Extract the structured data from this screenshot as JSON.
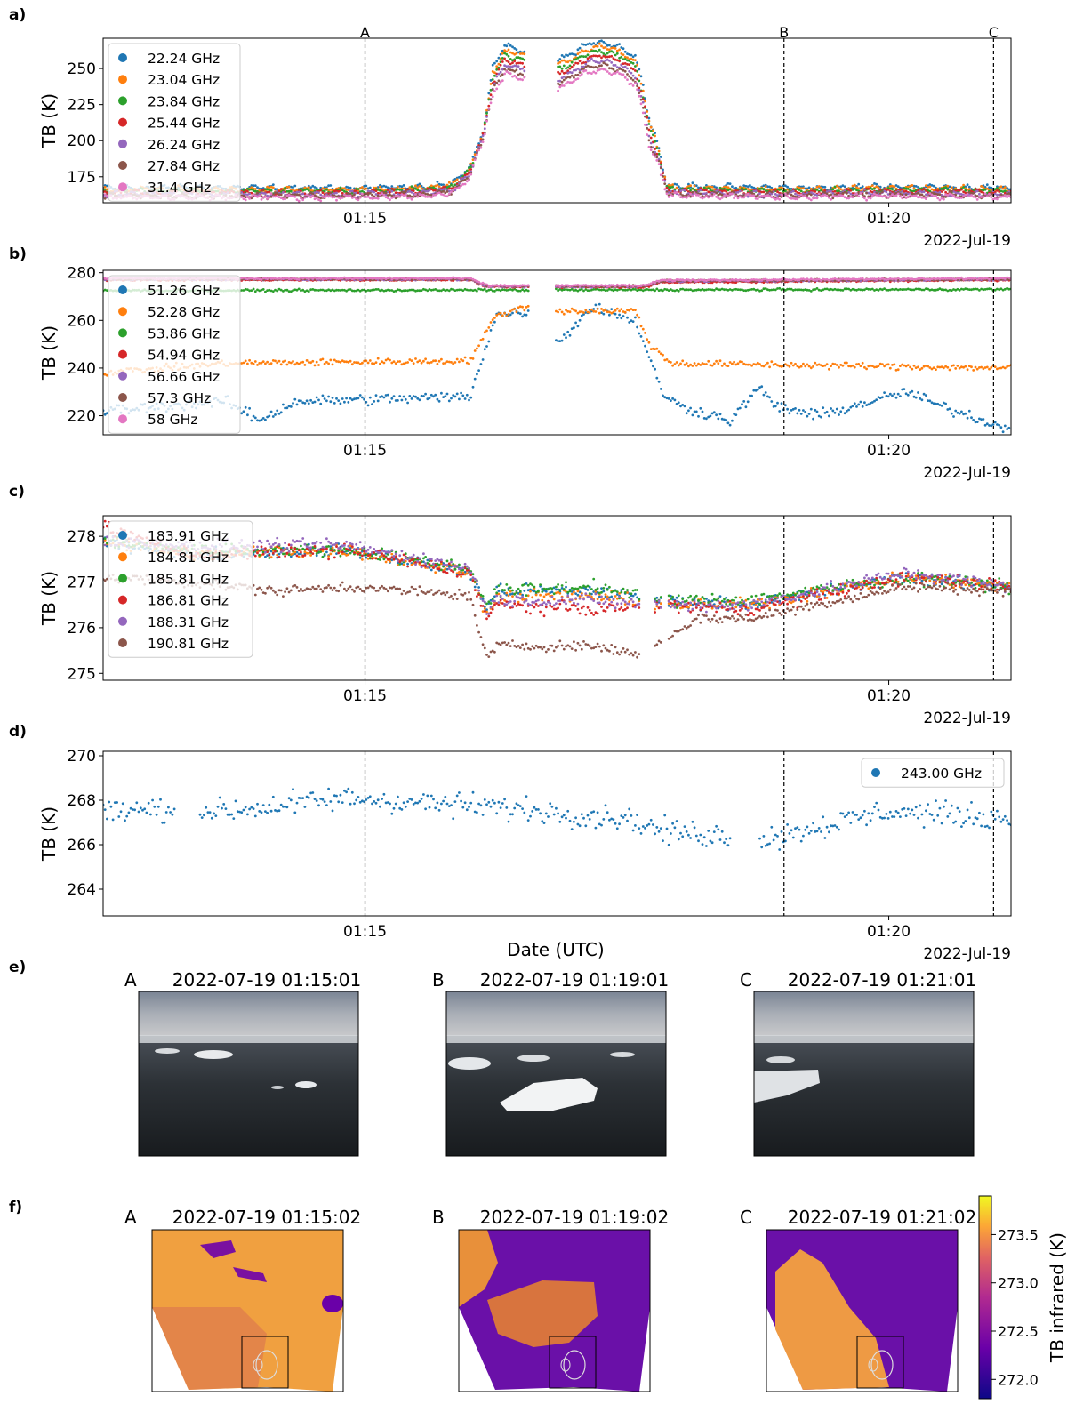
{
  "figure": {
    "date_label": "2022-Jul-19",
    "common_xlabel": "Date (UTC)",
    "x_ticks": [
      "01:15",
      "01:20"
    ],
    "events": [
      "A",
      "B",
      "C"
    ]
  },
  "chart_data": [
    {
      "panel": "a)",
      "type": "scatter",
      "ylabel": "TB (K)",
      "ylim": [
        157,
        271
      ],
      "y_ticks": [
        175,
        200,
        225,
        250
      ],
      "legend": "top-left",
      "event_labels_on_top": true,
      "series": [
        {
          "name": "22.24 GHz",
          "color": "#1f77b4"
        },
        {
          "name": "23.04 GHz",
          "color": "#ff7f0e"
        },
        {
          "name": "23.84 GHz",
          "color": "#2ca02c"
        },
        {
          "name": "25.44 GHz",
          "color": "#d62728"
        },
        {
          "name": "26.24 GHz",
          "color": "#9467bd"
        },
        {
          "name": "27.84 GHz",
          "color": "#8c564b"
        },
        {
          "name": "31.4 GHz",
          "color": "#e377c2"
        }
      ],
      "profile": [
        [
          0,
          164
        ],
        [
          14.5,
          164
        ],
        [
          18.5,
          165
        ],
        [
          20,
          167
        ],
        [
          21,
          178
        ],
        [
          21.8,
          205
        ],
        [
          22.3,
          240
        ],
        [
          23,
          256
        ],
        [
          24.2,
          252
        ],
        [
          24.4,
          null
        ],
        [
          25.9,
          null
        ],
        [
          26,
          246
        ],
        [
          26.8,
          250
        ],
        [
          27.5,
          256
        ],
        [
          28.5,
          259
        ],
        [
          29.7,
          255
        ],
        [
          30.5,
          248
        ],
        [
          30.9,
          230
        ],
        [
          31.3,
          205
        ],
        [
          31.8,
          190
        ],
        [
          32.3,
          166
        ],
        [
          33,
          165
        ],
        [
          40,
          164
        ],
        [
          45,
          165
        ],
        [
          52,
          164
        ]
      ],
      "gaps": [
        [
          24.4,
          25.9
        ]
      ],
      "spread": [
        [
          0,
          -4
        ],
        [
          22,
          -4
        ],
        [
          22.3,
          -12
        ],
        [
          31.3,
          -12
        ],
        [
          32.3,
          -4
        ],
        [
          52,
          -4
        ]
      ],
      "noise": 1.5
    },
    {
      "panel": "b)",
      "type": "scatter",
      "ylabel": "TB (K)",
      "ylim": [
        212,
        281
      ],
      "y_ticks": [
        220,
        240,
        260,
        280
      ],
      "legend": "top-left",
      "series": [
        {
          "name": "51.26 GHz",
          "color": "#1f77b4",
          "profile": [
            [
              0,
              222
            ],
            [
              7,
              226
            ],
            [
              9,
              218
            ],
            [
              11,
              226
            ],
            [
              21,
              228
            ],
            [
              22.5,
              262
            ],
            [
              24.4,
              264
            ],
            [
              26,
              250
            ],
            [
              28,
              266
            ],
            [
              30.5,
              260
            ],
            [
              31.3,
              244
            ],
            [
              32,
              230
            ],
            [
              33,
              224
            ],
            [
              36,
              218
            ],
            [
              37.5,
              232
            ],
            [
              38.5,
              224
            ],
            [
              41,
              220
            ],
            [
              43,
              224
            ],
            [
              46,
              230
            ],
            [
              48,
              224
            ],
            [
              52,
              214
            ]
          ],
          "noise": 2.5
        },
        {
          "name": "52.28 GHz",
          "color": "#ff7f0e",
          "profile": [
            [
              0,
              238
            ],
            [
              7,
              242
            ],
            [
              21,
              243
            ],
            [
              22.5,
              262
            ],
            [
              24.4,
              266
            ],
            [
              26,
              264
            ],
            [
              30.5,
              264
            ],
            [
              31.3,
              250
            ],
            [
              32.5,
              242
            ],
            [
              52,
              240
            ]
          ],
          "noise": 1.5
        },
        {
          "name": "53.86 GHz",
          "color": "#2ca02c",
          "profile": [
            [
              0,
              272.5
            ],
            [
              52,
              273
            ]
          ],
          "noise": 0.5
        },
        {
          "name": "54.94 GHz",
          "color": "#d62728",
          "profile": [
            [
              0,
              277
            ],
            [
              21,
              277
            ],
            [
              22,
              274
            ],
            [
              31,
              274
            ],
            [
              32,
              276
            ],
            [
              52,
              277
            ]
          ],
          "noise": 0.4
        },
        {
          "name": "56.66 GHz",
          "color": "#9467bd",
          "profile": [
            [
              0,
              277.2
            ],
            [
              21,
              277.2
            ],
            [
              22,
              274.2
            ],
            [
              31,
              274.2
            ],
            [
              32,
              276.4
            ],
            [
              52,
              277.2
            ]
          ],
          "noise": 0.4
        },
        {
          "name": "57.3 GHz",
          "color": "#8c564b",
          "profile": [
            [
              0,
              277.4
            ],
            [
              21,
              277.4
            ],
            [
              22,
              274.4
            ],
            [
              31,
              274.4
            ],
            [
              32,
              276.6
            ],
            [
              52,
              277.4
            ]
          ],
          "noise": 0.4
        },
        {
          "name": "58 GHz",
          "color": "#e377c2",
          "profile": [
            [
              0,
              277.6
            ],
            [
              21,
              277.6
            ],
            [
              22,
              274.6
            ],
            [
              31,
              274.6
            ],
            [
              32,
              276.8
            ],
            [
              52,
              277.6
            ]
          ],
          "noise": 0.4
        }
      ],
      "gaps": [
        [
          24.4,
          25.9
        ]
      ]
    },
    {
      "panel": "c)",
      "type": "scatter",
      "ylabel": "TB (K)",
      "ylim": [
        274.85,
        278.45
      ],
      "y_ticks": [
        275,
        276,
        277,
        278
      ],
      "legend": "top-left",
      "series": [
        {
          "name": "183.91 GHz",
          "color": "#1f77b4",
          "profile": [
            [
              0,
              277.9
            ],
            [
              5,
              277.6
            ],
            [
              14,
              277.7
            ],
            [
              21,
              277.2
            ],
            [
              22,
              276.4
            ],
            [
              22.5,
              276.8
            ],
            [
              28,
              276.8
            ],
            [
              32,
              276.6
            ],
            [
              37,
              276.5
            ],
            [
              46,
              277.1
            ],
            [
              52,
              276.9
            ]
          ],
          "noise": 0.15
        },
        {
          "name": "184.81 GHz",
          "color": "#ff7f0e",
          "profile": [
            [
              0,
              277.9
            ],
            [
              5,
              277.6
            ],
            [
              14,
              277.7
            ],
            [
              21,
              277.2
            ],
            [
              22,
              276.3
            ],
            [
              22.5,
              276.7
            ],
            [
              28,
              276.7
            ],
            [
              32,
              276.5
            ],
            [
              37,
              276.5
            ],
            [
              46,
              277.1
            ],
            [
              52,
              276.9
            ]
          ],
          "noise": 0.15
        },
        {
          "name": "185.81 GHz",
          "color": "#2ca02c",
          "profile": [
            [
              0,
              277.9
            ],
            [
              5,
              277.7
            ],
            [
              14,
              277.7
            ],
            [
              21,
              277.3
            ],
            [
              22,
              276.5
            ],
            [
              22.5,
              276.8
            ],
            [
              28,
              276.9
            ],
            [
              32,
              276.6
            ],
            [
              37,
              276.6
            ],
            [
              46,
              277.1
            ],
            [
              52,
              276.9
            ]
          ],
          "noise": 0.15
        },
        {
          "name": "186.81 GHz",
          "color": "#d62728",
          "profile": [
            [
              0,
              278.2
            ],
            [
              5,
              277.6
            ],
            [
              14,
              277.7
            ],
            [
              21,
              277.2
            ],
            [
              22,
              276.2
            ],
            [
              22.5,
              276.5
            ],
            [
              28,
              276.4
            ],
            [
              32,
              276.5
            ],
            [
              37,
              276.4
            ],
            [
              46,
              277.1
            ],
            [
              52,
              276.9
            ]
          ],
          "noise": 0.15
        },
        {
          "name": "188.31 GHz",
          "color": "#9467bd",
          "profile": [
            [
              0,
              277.9
            ],
            [
              5,
              277.8
            ],
            [
              14,
              277.8
            ],
            [
              21,
              277.3
            ],
            [
              22,
              276.4
            ],
            [
              22.5,
              276.6
            ],
            [
              28,
              276.6
            ],
            [
              32,
              276.5
            ],
            [
              37,
              276.5
            ],
            [
              46,
              277.2
            ],
            [
              52,
              276.9
            ]
          ],
          "noise": 0.15
        },
        {
          "name": "190.81 GHz",
          "color": "#8c564b",
          "profile": [
            [
              0,
              277.1
            ],
            [
              5,
              277.0
            ],
            [
              10,
              276.8
            ],
            [
              14,
              276.9
            ],
            [
              21,
              276.7
            ],
            [
              22,
              275.3
            ],
            [
              22.5,
              275.6
            ],
            [
              28,
              275.6
            ],
            [
              31,
              275.4
            ],
            [
              32,
              275.7
            ],
            [
              34,
              276.2
            ],
            [
              37,
              276.2
            ],
            [
              46,
              276.9
            ],
            [
              52,
              276.8
            ]
          ],
          "noise": 0.12
        }
      ],
      "gaps": [
        [
          30.8,
          31.6
        ],
        [
          31.95,
          32.3
        ]
      ]
    },
    {
      "panel": "d)",
      "type": "scatter",
      "ylabel": "TB (K)",
      "ylim": [
        262.8,
        270.2
      ],
      "y_ticks": [
        264,
        266,
        268,
        270
      ],
      "legend": "top-right",
      "series": [
        {
          "name": "243.00 GHz",
          "color": "#1f77b4",
          "profile": [
            [
              0,
              267.5
            ],
            [
              4,
              267.6
            ],
            [
              7,
              267.5
            ],
            [
              14,
              268.1
            ],
            [
              24,
              267.6
            ],
            [
              28,
              267.3
            ],
            [
              30,
              267.2
            ],
            [
              32,
              266.6
            ],
            [
              38,
              266.3
            ],
            [
              45,
              267.5
            ],
            [
              52,
              267.2
            ]
          ],
          "noise": 0.6
        }
      ],
      "gaps": [
        [
          4.1,
          5.5
        ],
        [
          36.0,
          37.5
        ]
      ]
    }
  ],
  "photo_panel": {
    "label": "e)",
    "images": [
      {
        "letter": "A",
        "timestamp": "2022-07-19 01:15:01"
      },
      {
        "letter": "B",
        "timestamp": "2022-07-19 01:19:01"
      },
      {
        "letter": "C",
        "timestamp": "2022-07-19 01:21:01"
      }
    ]
  },
  "infrared_panel": {
    "label": "f)",
    "images": [
      {
        "letter": "A",
        "timestamp": "2022-07-19 01:15:02"
      },
      {
        "letter": "B",
        "timestamp": "2022-07-19 01:19:02"
      },
      {
        "letter": "C",
        "timestamp": "2022-07-19 01:21:02"
      }
    ],
    "colorbar": {
      "label": "TB infrared (K)",
      "ticks": [
        "273.5",
        "273.0",
        "272.5",
        "272.0"
      ],
      "range": [
        271.8,
        273.9
      ]
    }
  }
}
